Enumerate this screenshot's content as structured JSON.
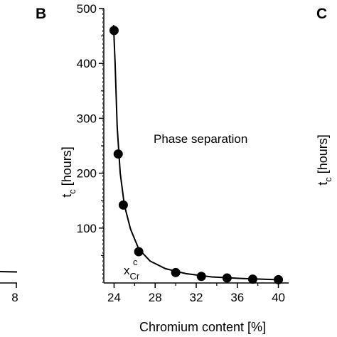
{
  "panels": {
    "left_partial": {
      "x_tick_label": "8"
    },
    "B": {
      "letter": "B"
    },
    "C": {
      "letter": "C",
      "ylabel": {
        "main": "t",
        "sub": "c",
        "rest": " [hours]"
      }
    }
  },
  "chart_data": {
    "type": "scatter",
    "xlabel": "Chromium content [%]",
    "ylabel": {
      "main": "t",
      "sub": "c",
      "rest": " [hours]"
    },
    "xlim": [
      23,
      41
    ],
    "ylim": [
      0,
      500
    ],
    "x_ticks": [
      24,
      28,
      32,
      36,
      40
    ],
    "y_ticks": [
      100,
      200,
      300,
      400,
      500
    ],
    "x_tick_labels": [
      "24",
      "28",
      "32",
      "36",
      "40"
    ],
    "y_tick_labels": [
      "100",
      "200",
      "300",
      "400",
      "500"
    ],
    "series": [
      {
        "points": [
          {
            "x": 24.0,
            "y": 460
          },
          {
            "x": 24.4,
            "y": 235
          },
          {
            "x": 24.9,
            "y": 142
          },
          {
            "x": 26.4,
            "y": 57
          },
          {
            "x": 30.0,
            "y": 19
          },
          {
            "x": 32.5,
            "y": 12
          },
          {
            "x": 35.0,
            "y": 9
          },
          {
            "x": 37.5,
            "y": 7
          },
          {
            "x": 40.0,
            "y": 6
          }
        ]
      }
    ],
    "fit_curve": [
      {
        "x": 23.95,
        "y": 470
      },
      {
        "x": 24.1,
        "y": 400
      },
      {
        "x": 24.3,
        "y": 285
      },
      {
        "x": 24.6,
        "y": 200
      },
      {
        "x": 25.0,
        "y": 142
      },
      {
        "x": 25.6,
        "y": 98
      },
      {
        "x": 26.4,
        "y": 62
      },
      {
        "x": 27.5,
        "y": 40
      },
      {
        "x": 29.0,
        "y": 26
      },
      {
        "x": 31.0,
        "y": 17
      },
      {
        "x": 33.5,
        "y": 11
      },
      {
        "x": 36.5,
        "y": 8
      },
      {
        "x": 40.0,
        "y": 6
      }
    ],
    "vertical_dashed_line_x": 22.9,
    "annotations": {
      "region": "Phase separation",
      "critical_label": {
        "main": "x",
        "sub": "Cr",
        "sup": "c"
      }
    },
    "marker_color": "#000000",
    "line_color": "#000000"
  }
}
